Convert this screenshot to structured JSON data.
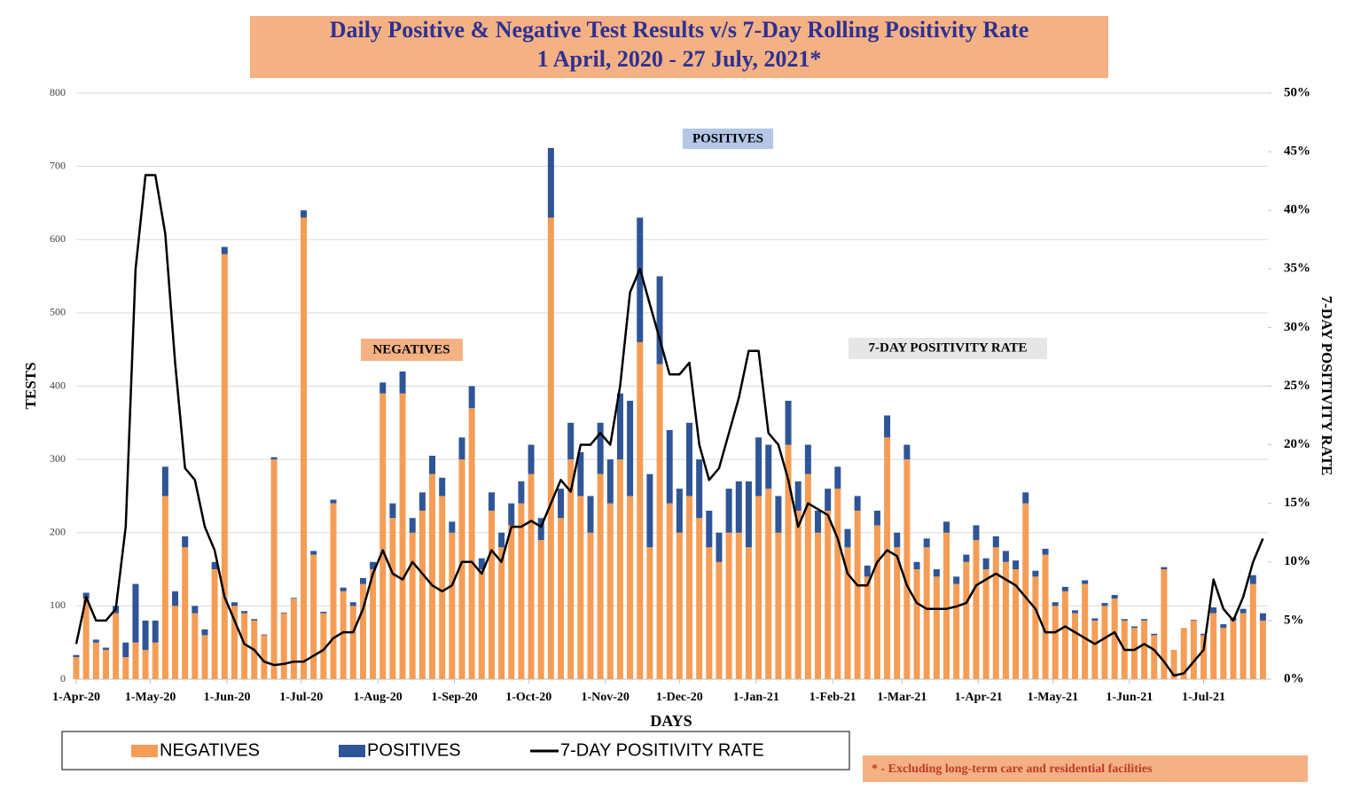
{
  "chart_data": {
    "type": "stacked-bar-line",
    "title": "Daily Positive & Negative Test Results v/s 7-Day Rolling Positivity Rate",
    "subtitle": "1 April, 2020 -  27 July, 2021*",
    "x_label": "DAYS",
    "y_label": "TESTS",
    "y2_label": "7-DAY POSITIVITY RATE",
    "annotations": [
      "POSITIVES",
      "NEGATIVES",
      "7-DAY POSITIVITY RATE"
    ],
    "footnote": "* - Excluding long-term care and residential facilities",
    "xlim": [
      "2020-04-01",
      "2021-07-27"
    ],
    "xticks": [
      {
        "value": "2020-04-01",
        "label": "1-Apr-20"
      },
      {
        "value": "2020-05-01",
        "label": "1-May-20"
      },
      {
        "value": "2020-06-01",
        "label": "1-Jun-20"
      },
      {
        "value": "2020-07-01",
        "label": "1-Jul-20"
      },
      {
        "value": "2020-08-01",
        "label": "1-Aug-20"
      },
      {
        "value": "2020-09-01",
        "label": "1-Sep-20"
      },
      {
        "value": "2020-10-01",
        "label": "1-Oct-20"
      },
      {
        "value": "2020-11-01",
        "label": "1-Nov-20"
      },
      {
        "value": "2020-12-01",
        "label": "1-Dec-20"
      },
      {
        "value": "2021-01-01",
        "label": "1-Jan-21"
      },
      {
        "value": "2021-02-01",
        "label": "1-Feb-21"
      },
      {
        "value": "2021-03-01",
        "label": "1-Mar-21"
      },
      {
        "value": "2021-04-01",
        "label": "1-Apr-21"
      },
      {
        "value": "2021-05-01",
        "label": "1-May-21"
      },
      {
        "value": "2021-06-01",
        "label": "1-Jun-21"
      },
      {
        "value": "2021-07-01",
        "label": "1-Jul-21"
      }
    ],
    "ylim": [
      0,
      800
    ],
    "yticks": [
      0,
      100,
      200,
      300,
      400,
      500,
      600,
      700,
      800
    ],
    "y2lim": [
      0,
      50
    ],
    "y2ticks": [
      {
        "value": 0,
        "label": "0%"
      },
      {
        "value": 5,
        "label": "5%"
      },
      {
        "value": 10,
        "label": "10%"
      },
      {
        "value": 15,
        "label": "15%"
      },
      {
        "value": 20,
        "label": "20%"
      },
      {
        "value": 25,
        "label": "25%"
      },
      {
        "value": 30,
        "label": "30%"
      },
      {
        "value": 35,
        "label": "35%"
      },
      {
        "value": 40,
        "label": "40%"
      },
      {
        "value": 45,
        "label": "45%"
      },
      {
        "value": 50,
        "label": "50%"
      }
    ],
    "grid": true,
    "x": [
      "2020-04-01",
      "2020-04-05",
      "2020-04-09",
      "2020-04-13",
      "2020-04-17",
      "2020-04-21",
      "2020-04-25",
      "2020-04-29",
      "2020-05-03",
      "2020-05-07",
      "2020-05-11",
      "2020-05-15",
      "2020-05-19",
      "2020-05-23",
      "2020-05-27",
      "2020-05-31",
      "2020-06-04",
      "2020-06-08",
      "2020-06-12",
      "2020-06-16",
      "2020-06-20",
      "2020-06-24",
      "2020-06-28",
      "2020-07-02",
      "2020-07-06",
      "2020-07-10",
      "2020-07-14",
      "2020-07-18",
      "2020-07-22",
      "2020-07-26",
      "2020-07-30",
      "2020-08-03",
      "2020-08-07",
      "2020-08-11",
      "2020-08-15",
      "2020-08-19",
      "2020-08-23",
      "2020-08-27",
      "2020-08-31",
      "2020-09-04",
      "2020-09-08",
      "2020-09-12",
      "2020-09-16",
      "2020-09-20",
      "2020-09-24",
      "2020-09-28",
      "2020-10-02",
      "2020-10-06",
      "2020-10-10",
      "2020-10-14",
      "2020-10-18",
      "2020-10-22",
      "2020-10-26",
      "2020-10-30",
      "2020-11-03",
      "2020-11-07",
      "2020-11-11",
      "2020-11-15",
      "2020-11-19",
      "2020-11-23",
      "2020-11-27",
      "2020-12-01",
      "2020-12-05",
      "2020-12-09",
      "2020-12-13",
      "2020-12-17",
      "2020-12-21",
      "2020-12-25",
      "2020-12-29",
      "2021-01-02",
      "2021-01-06",
      "2021-01-10",
      "2021-01-14",
      "2021-01-18",
      "2021-01-22",
      "2021-01-26",
      "2021-01-30",
      "2021-02-03",
      "2021-02-07",
      "2021-02-11",
      "2021-02-15",
      "2021-02-19",
      "2021-02-23",
      "2021-02-27",
      "2021-03-03",
      "2021-03-07",
      "2021-03-11",
      "2021-03-15",
      "2021-03-19",
      "2021-03-23",
      "2021-03-27",
      "2021-03-31",
      "2021-04-04",
      "2021-04-08",
      "2021-04-12",
      "2021-04-16",
      "2021-04-20",
      "2021-04-24",
      "2021-04-28",
      "2021-05-02",
      "2021-05-06",
      "2021-05-10",
      "2021-05-14",
      "2021-05-18",
      "2021-05-22",
      "2021-05-26",
      "2021-05-30",
      "2021-06-03",
      "2021-06-07",
      "2021-06-11",
      "2021-06-15",
      "2021-06-19",
      "2021-06-23",
      "2021-06-27",
      "2021-07-01",
      "2021-07-05",
      "2021-07-09",
      "2021-07-13",
      "2021-07-17",
      "2021-07-21",
      "2021-07-25"
    ],
    "series": [
      {
        "name": "NEGATIVES",
        "color": "#f59d56",
        "values": [
          30,
          110,
          50,
          40,
          90,
          30,
          50,
          40,
          50,
          250,
          100,
          180,
          90,
          60,
          150,
          580,
          100,
          90,
          80,
          60,
          300,
          90,
          110,
          630,
          170,
          90,
          240,
          120,
          100,
          130,
          150,
          390,
          220,
          390,
          200,
          230,
          280,
          250,
          200,
          300,
          370,
          150,
          230,
          180,
          210,
          240,
          280,
          190,
          630,
          220,
          300,
          250,
          200,
          280,
          240,
          300,
          250,
          460,
          180,
          430,
          240,
          200,
          250,
          220,
          180,
          160,
          200,
          200,
          180,
          250,
          260,
          200,
          320,
          230,
          280,
          200,
          230,
          260,
          180,
          230,
          140,
          210,
          330,
          180,
          300,
          150,
          180,
          140,
          200,
          130,
          160,
          190,
          150,
          180,
          160,
          150,
          240,
          140,
          170,
          100,
          120,
          90,
          130,
          80,
          100,
          110,
          80,
          70,
          80,
          60,
          150,
          40,
          70,
          80,
          60,
          90,
          70,
          80,
          90,
          130,
          80
        ]
      },
      {
        "name": "POSITIVES",
        "color": "#2f5597",
        "values": [
          3,
          8,
          4,
          3,
          10,
          20,
          80,
          40,
          30,
          40,
          20,
          15,
          10,
          8,
          10,
          10,
          5,
          3,
          2,
          1,
          3,
          1,
          1,
          10,
          5,
          2,
          5,
          5,
          5,
          8,
          10,
          15,
          20,
          30,
          20,
          25,
          25,
          25,
          15,
          30,
          30,
          15,
          25,
          20,
          30,
          30,
          40,
          30,
          95,
          40,
          50,
          60,
          50,
          70,
          60,
          90,
          130,
          170,
          100,
          120,
          100,
          60,
          100,
          80,
          50,
          40,
          60,
          70,
          90,
          80,
          60,
          50,
          60,
          40,
          40,
          30,
          30,
          30,
          25,
          20,
          15,
          20,
          30,
          20,
          20,
          10,
          12,
          10,
          15,
          10,
          10,
          20,
          15,
          15,
          15,
          12,
          15,
          8,
          8,
          5,
          6,
          4,
          5,
          3,
          4,
          5,
          2,
          2,
          2,
          2,
          3,
          0,
          0,
          1,
          2,
          8,
          5,
          4,
          6,
          12,
          10
        ]
      },
      {
        "name": "7-DAY POSITIVITY RATE",
        "color": "#000000",
        "axis": "y2",
        "values": [
          3,
          7,
          5,
          5,
          6,
          13,
          35,
          43,
          43,
          38,
          27,
          18,
          17,
          13,
          11,
          7,
          5,
          3,
          2.5,
          1.5,
          1.2,
          1.3,
          1.5,
          1.5,
          2,
          2.5,
          3.5,
          4,
          4,
          6,
          9,
          11,
          9,
          8.5,
          10,
          9,
          8,
          7.5,
          8,
          10,
          10,
          9,
          11,
          10,
          13,
          13,
          13.5,
          13,
          15,
          17,
          16,
          20,
          20,
          21,
          20,
          25,
          33,
          35,
          32,
          29,
          26,
          26,
          27,
          20,
          17,
          18,
          21,
          24,
          28,
          28,
          21,
          20,
          17,
          13,
          15,
          14.5,
          14,
          12,
          9,
          8,
          8,
          10,
          11,
          10.5,
          8,
          6.5,
          6,
          6,
          6,
          6.2,
          6.5,
          8,
          8.5,
          9,
          8.5,
          8,
          7,
          6,
          4,
          4,
          4.5,
          4,
          3.5,
          3,
          3.5,
          4,
          2.5,
          2.5,
          3,
          2.5,
          1.5,
          0.3,
          0.5,
          1.5,
          2.5,
          8.5,
          6,
          5,
          7,
          10,
          12
        ]
      }
    ]
  }
}
